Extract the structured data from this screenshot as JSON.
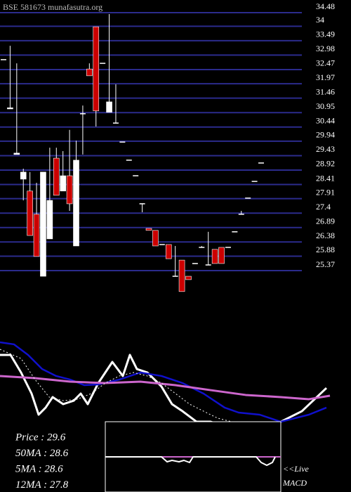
{
  "chart_data": [
    {
      "type": "candlestick",
      "title": "BSE 581673 munafasutra.org",
      "open": [
        32.82,
        31.08,
        29.47,
        28.6,
        28.18,
        27.36,
        25.17,
        26.49,
        29.34,
        28.18,
        28.72,
        26.24,
        30.91,
        32.49,
        33.98,
        32.69,
        30.96,
        30.58,
        29.91,
        29.27,
        28.72,
        27.73,
        26.86,
        26.79,
        26.29,
        26.29,
        25.17,
        25.74,
        25.17,
        25.62,
        26.19,
        25.57,
        26.12,
        26.19,
        26.19,
        26.74,
        27.36,
        27.93,
        28.52,
        29.17
      ],
      "high": [
        32.82,
        33.31,
        32.69,
        28.97,
        28.85,
        28.47,
        28.85,
        29.71,
        29.71,
        29.59,
        30.34,
        29.96,
        31.2,
        32.69,
        33.98,
        32.69,
        34.43,
        31.95,
        29.91,
        29.27,
        28.72,
        27.73,
        26.86,
        26.79,
        26.29,
        26.29,
        26.24,
        25.74,
        25.17,
        25.62,
        26.24,
        26.74,
        26.12,
        26.19,
        26.19,
        26.74,
        27.48,
        27.93,
        28.52,
        29.17
      ],
      "low": [
        32.82,
        31.08,
        29.47,
        27.85,
        26.61,
        25.87,
        25.17,
        26.49,
        28.03,
        28.18,
        27.48,
        26.24,
        29.47,
        32.25,
        30.46,
        32.69,
        30.96,
        30.58,
        29.91,
        29.27,
        28.72,
        27.43,
        26.79,
        26.24,
        26.29,
        25.79,
        25.17,
        24.63,
        25.05,
        25.62,
        26.19,
        25.57,
        25.62,
        25.62,
        26.19,
        26.74,
        27.36,
        27.93,
        28.52,
        29.17
      ],
      "close": [
        32.82,
        31.12,
        29.52,
        28.85,
        26.61,
        25.87,
        28.85,
        27.85,
        28.03,
        28.72,
        27.73,
        29.27,
        30.91,
        32.25,
        31.01,
        32.69,
        31.33,
        30.58,
        29.91,
        29.27,
        28.72,
        27.73,
        26.79,
        26.24,
        26.29,
        25.79,
        25.17,
        24.63,
        25.05,
        25.62,
        26.19,
        25.57,
        25.62,
        25.62,
        26.19,
        26.74,
        27.36,
        27.93,
        28.52,
        29.17
      ],
      "up_color": "#ffffff",
      "down_color": "#cc0000",
      "grid": true,
      "grid_color": "#2b2b8c",
      "ylim": [
        25.37,
        34.48
      ],
      "yticks": [
        34.48,
        34,
        33.49,
        32.98,
        32.47,
        31.97,
        31.46,
        30.95,
        30.44,
        29.94,
        29.43,
        28.92,
        28.41,
        27.91,
        27.4,
        26.89,
        26.38,
        25.88,
        25.37
      ]
    },
    {
      "type": "line",
      "xlim": [
        0,
        500
      ],
      "ylim": [
        0,
        100
      ],
      "series": [
        {
          "color": "#ffffff",
          "width": 3,
          "x": [
            0,
            15,
            30,
            45,
            55,
            65,
            75,
            90,
            105,
            115,
            125,
            140,
            160,
            175,
            185,
            195,
            210,
            230,
            245,
            260,
            280,
            300,
            330,
            370,
            400,
            430,
            465
          ],
          "values": [
            76.7,
            76.7,
            60,
            40,
            20,
            26.7,
            36.7,
            30,
            33.3,
            40,
            30,
            50,
            70,
            56.7,
            76.7,
            63.3,
            60,
            46.7,
            30,
            23.3,
            13.3,
            13.3,
            6.7,
            5.3,
            13.3,
            23.3,
            45.3
          ]
        },
        {
          "color": "#1010cc",
          "width": 2.5,
          "x": [
            0,
            20,
            40,
            60,
            80,
            100,
            120,
            140,
            170,
            200,
            230,
            260,
            290,
            320,
            340,
            370,
            400,
            440,
            465
          ],
          "values": [
            88.7,
            86.7,
            76.7,
            63.3,
            56.7,
            53.3,
            48,
            48.7,
            53.3,
            60,
            56.7,
            50,
            40,
            26.7,
            22,
            20,
            13.3,
            20,
            26.7
          ]
        },
        {
          "color": "#cc66cc",
          "width": 3,
          "x": [
            0,
            50,
            100,
            150,
            200,
            250,
            300,
            350,
            400,
            440,
            470
          ],
          "values": [
            56.7,
            54.7,
            51.3,
            50,
            51.3,
            48,
            43.3,
            38.7,
            36.7,
            34.7,
            38
          ]
        },
        {
          "color": "#ffffff",
          "width": 1,
          "dashed": true,
          "x": [
            0,
            30,
            50,
            70,
            90,
            110,
            130,
            150,
            170,
            190,
            210,
            230,
            250,
            270,
            290,
            310,
            330
          ],
          "values": [
            82,
            73.3,
            53.3,
            36.7,
            33.3,
            34.7,
            40,
            50,
            56.7,
            60,
            56.7,
            50,
            40,
            30,
            23.3,
            16.7,
            13.3
          ]
        }
      ],
      "annotations": [
        "Price   : 29.6",
        "50MA : 28.6",
        "5MA : 28.6",
        "12MA : 27.8"
      ]
    },
    {
      "type": "line",
      "xlim": [
        150,
        400
      ],
      "ylim": [
        0,
        100
      ],
      "series": [
        {
          "color": "#cc66cc",
          "width": 2,
          "x": [
            150,
            400
          ],
          "values": [
            50,
            50
          ]
        },
        {
          "color": "#ffffff",
          "width": 2,
          "x": [
            150,
            230,
            238,
            245,
            255,
            262,
            270,
            275,
            365,
            372,
            380,
            388,
            392
          ],
          "values": [
            50,
            50,
            43,
            45,
            43,
            45,
            42,
            50,
            50,
            42,
            38,
            42,
            50
          ]
        }
      ],
      "annotations": [
        "<<Live",
        "MACD"
      ]
    }
  ]
}
